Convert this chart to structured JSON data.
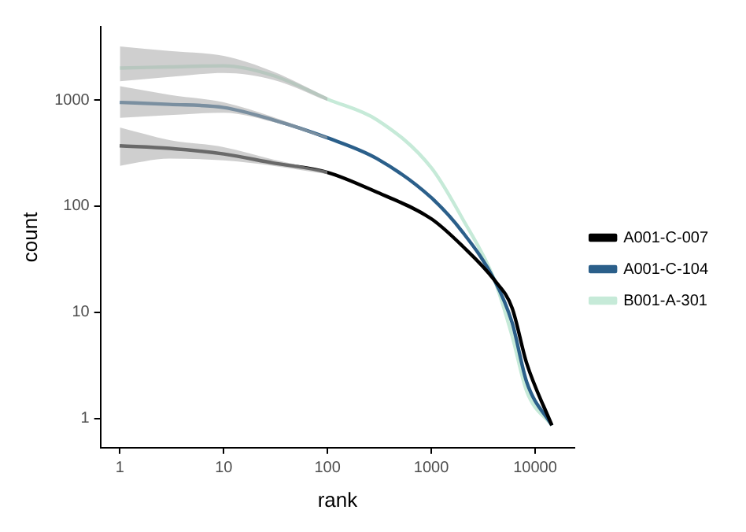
{
  "chart_data": {
    "type": "line",
    "xlabel": "rank",
    "ylabel": "count",
    "log": "xy",
    "grid": false,
    "legend": "right",
    "marker": "none",
    "line_style": "solid",
    "x": [
      1,
      3,
      10,
      30,
      100,
      300,
      1000,
      2000,
      4070,
      6000,
      8300,
      14500
    ],
    "xlim": [
      0.65,
      24000
    ],
    "xticks": [
      1,
      10,
      100,
      1000,
      10000
    ],
    "ylim": [
      0.53,
      4900
    ],
    "yticks": [
      1,
      10,
      100,
      1000
    ],
    "series": [
      {
        "name": "A001-C-007",
        "color": "#000000",
        "values": [
          370,
          350,
          310,
          255,
          208,
          135,
          76,
          42,
          20,
          11,
          3.3,
          0.86
        ],
        "lower": [
          240,
          280,
          270,
          240,
          200,
          null,
          null,
          null,
          null,
          null,
          null,
          null
        ],
        "upper": [
          550,
          420,
          360,
          275,
          215,
          null,
          null,
          null,
          null,
          null,
          null,
          null
        ]
      },
      {
        "name": "A001-C-104",
        "color": "#2b5f8a",
        "values": [
          950,
          910,
          850,
          650,
          440,
          280,
          120,
          57,
          20,
          8,
          2.2,
          0.86
        ],
        "lower": [
          680,
          720,
          760,
          620,
          430,
          null,
          null,
          null,
          null,
          null,
          null,
          null
        ],
        "upper": [
          1350,
          1120,
          950,
          690,
          450,
          null,
          null,
          null,
          null,
          null,
          null,
          null
        ]
      },
      {
        "name": "B001-A-301",
        "color": "#c6ead8",
        "values": [
          2000,
          2050,
          2100,
          1700,
          1020,
          650,
          230,
          76,
          20,
          6,
          1.8,
          0.86
        ],
        "lower": [
          1500,
          1650,
          1800,
          1550,
          980,
          null,
          null,
          null,
          null,
          null,
          null,
          null
        ],
        "upper": [
          3200,
          2900,
          2600,
          1850,
          1060,
          null,
          null,
          null,
          null,
          null,
          null,
          null
        ]
      }
    ]
  }
}
